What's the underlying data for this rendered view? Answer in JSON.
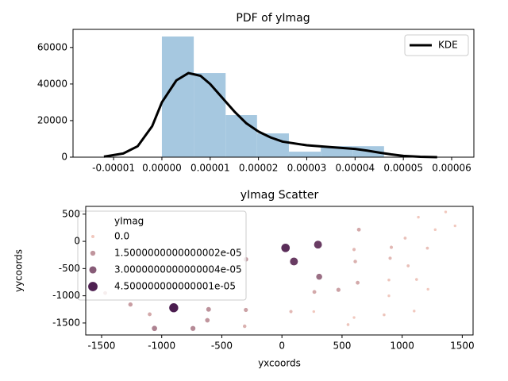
{
  "chart_data": [
    {
      "type": "histogram",
      "title": "PDF of yImag",
      "bins": [
        0,
        6.6e-06,
        1.32e-05,
        1.97e-05,
        2.63e-05,
        3.29e-05,
        3.95e-05,
        4.6e-05
      ],
      "values": [
        66000,
        46000,
        23000,
        13000,
        3000,
        6000,
        6000
      ],
      "color": "#a6c8e0",
      "series": [
        {
          "name": "KDE",
          "color": "#000000",
          "x": [
            -1.2e-05,
            -8e-06,
            -5e-06,
            -2e-06,
            0,
            3e-06,
            5.5e-06,
            8e-06,
            1e-05,
            1.25e-05,
            1.5e-05,
            1.75e-05,
            2e-05,
            2.25e-05,
            2.5e-05,
            3e-05,
            3.5e-05,
            4e-05,
            4.25e-05,
            4.5e-05,
            4.75e-05,
            5e-05,
            5.35e-05,
            5.7e-05
          ],
          "values": [
            300,
            2000,
            6000,
            17000,
            30000,
            42000,
            46000,
            44500,
            40000,
            32500,
            25000,
            18500,
            14000,
            10800,
            8500,
            6500,
            5500,
            4500,
            3600,
            2500,
            1500,
            700,
            200,
            0
          ]
        }
      ],
      "legend": "upper right",
      "xlim": [
        -1.84e-05,
        6.46e-05
      ],
      "ylim": [
        0,
        69900
      ],
      "xticks": [
        {
          "value": -1e-05,
          "label": "-0.00001"
        },
        {
          "value": 0,
          "label": "0.00000"
        },
        {
          "value": 1e-05,
          "label": "0.00001"
        },
        {
          "value": 2e-05,
          "label": "0.00002"
        },
        {
          "value": 3e-05,
          "label": "0.00003"
        },
        {
          "value": 4e-05,
          "label": "0.00004"
        },
        {
          "value": 5e-05,
          "label": "0.00005"
        },
        {
          "value": 6e-05,
          "label": "0.00006"
        }
      ],
      "yticks": [
        0,
        20000,
        40000,
        60000
      ]
    },
    {
      "type": "scatter",
      "title": "yImag Scatter",
      "x_label": "yxcoords",
      "y_label": "yycoords",
      "x": [
        1362,
        1135,
        1440,
        1275,
        1025,
        640,
        1210,
        910,
        600,
        30,
        300,
        100,
        -300,
        610,
        900,
        1050,
        310,
        890,
        1120,
        630,
        1215,
        470,
        270,
        890,
        -1470,
        -1260,
        -1100,
        -900,
        -610,
        -300,
        75,
        265,
        1100,
        850,
        600,
        550,
        -620,
        -310,
        -1060,
        -740
      ],
      "values": [
        540,
        445,
        285,
        215,
        60,
        215,
        -125,
        -110,
        -150,
        -120,
        -60,
        -370,
        -330,
        -370,
        -310,
        -450,
        -650,
        -710,
        -700,
        -760,
        -880,
        -890,
        -930,
        -1000,
        -950,
        -1160,
        -1340,
        -1220,
        -1250,
        -1260,
        -1290,
        -1290,
        -1280,
        -1350,
        -1400,
        -1530,
        -1450,
        -1560,
        -1600,
        -1600
      ],
      "hue": [
        2e-06,
        2e-06,
        2e-06,
        2e-06,
        4e-06,
        1e-05,
        4e-06,
        6e-06,
        6e-06,
        4.2e-05,
        3.8e-05,
        3.8e-05,
        1.5e-05,
        8e-06,
        6e-06,
        4e-06,
        2.5e-05,
        3e-06,
        3e-06,
        1e-05,
        2e-06,
        1.2e-05,
        1e-05,
        2e-06,
        1e-05,
        1.3e-05,
        1e-05,
        4.6e-05,
        1.6e-05,
        1.2e-05,
        6e-06,
        2e-06,
        2e-06,
        3e-06,
        2e-06,
        3e-06,
        1.5e-05,
        8e-06,
        2e-05,
        1.8e-05
      ],
      "colors": [
        "#f1c8be",
        "#4b1d4f"
      ],
      "legend": {
        "title": "yImag",
        "values": [
          {
            "value": 0,
            "label": "0.0"
          },
          {
            "value": 1.5000000000000002e-05,
            "label": "1.5000000000000002e-05"
          },
          {
            "value": 3.0000000000000004e-05,
            "label": "3.0000000000000004e-05"
          },
          {
            "value": 4.500000000000001e-05,
            "label": "4.500000000000001e-05"
          }
        ]
      },
      "xlim": [
        -1632,
        1590
      ],
      "ylim": [
        -1720,
        643
      ],
      "xticks": [
        -1500,
        -1000,
        -500,
        0,
        500,
        1000,
        1500
      ],
      "yticks": [
        -1500,
        -1000,
        -500,
        0,
        500
      ]
    }
  ]
}
